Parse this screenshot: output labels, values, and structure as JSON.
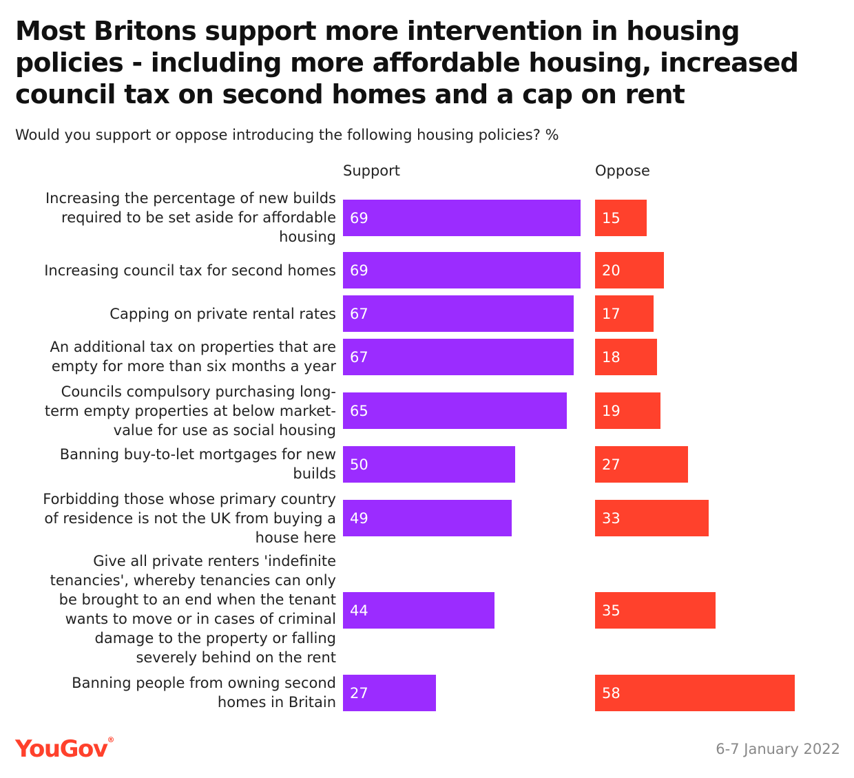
{
  "chart_data": {
    "type": "bar",
    "orientation": "horizontal",
    "title": "Most Britons support more intervention in housing policies - including more affordable housing, increased council tax on second homes and a cap on rent",
    "subtitle": "Would you support or oppose introducing the following housing policies? %",
    "categories": [
      "Increasing the percentage of new builds required to be set aside for affordable housing",
      "Increasing council tax for second homes",
      "Capping on private rental rates",
      "An additional tax on properties that are empty for more than six months a year",
      "Councils compulsory purchasing long-term empty properties at below market-value for use as social housing",
      "Banning buy-to-let mortgages for new builds",
      "Forbidding those whose primary country of residence is not the UK from buying a house here",
      "Give all private renters 'indefinite tenancies', whereby tenancies can only be brought to an end when the tenant wants to move or in cases of criminal damage to the property or falling severely behind on the rent",
      "Banning people from owning second homes in Britain"
    ],
    "series": [
      {
        "name": "Support",
        "color": "#9b2cff",
        "values": [
          69,
          69,
          67,
          67,
          65,
          50,
          49,
          44,
          27
        ]
      },
      {
        "name": "Oppose",
        "color": "#ff412c",
        "values": [
          15,
          20,
          17,
          18,
          19,
          27,
          33,
          35,
          58
        ]
      }
    ],
    "xlim": [
      0,
      100
    ],
    "grid": false,
    "legend": "top"
  },
  "footer": {
    "logo": "YouGov",
    "logo_mark": "®",
    "date": "6-7 January 2022"
  },
  "colors": {
    "support": "#9b2cff",
    "oppose": "#ff412c",
    "logo": "#ff412c"
  }
}
